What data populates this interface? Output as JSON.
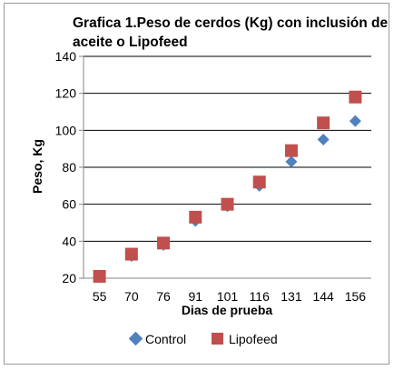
{
  "chart_data": {
    "type": "scatter",
    "title_lines": [
      "Grafica 1.Peso de cerdos (Kg) con inclusión de",
      "aceite o Lipofeed"
    ],
    "xlabel": "Dias de prueba",
    "ylabel": "Peso, Kg",
    "categories": [
      "55",
      "70",
      "76",
      "91",
      "101",
      "116",
      "131",
      "144",
      "156"
    ],
    "ylim": [
      20,
      140
    ],
    "yticks": [
      20,
      40,
      60,
      80,
      100,
      120,
      140
    ],
    "grid": true,
    "legend_position": "bottom",
    "series": [
      {
        "name": "Control",
        "marker": "diamond",
        "color": "#4F81BD",
        "values": [
          21,
          32,
          38,
          51,
          59,
          70,
          83,
          95,
          105
        ]
      },
      {
        "name": "Lipofeed",
        "marker": "square",
        "color": "#C0504D",
        "values": [
          21,
          33,
          39,
          53,
          60,
          72,
          89,
          104,
          118
        ]
      }
    ]
  }
}
